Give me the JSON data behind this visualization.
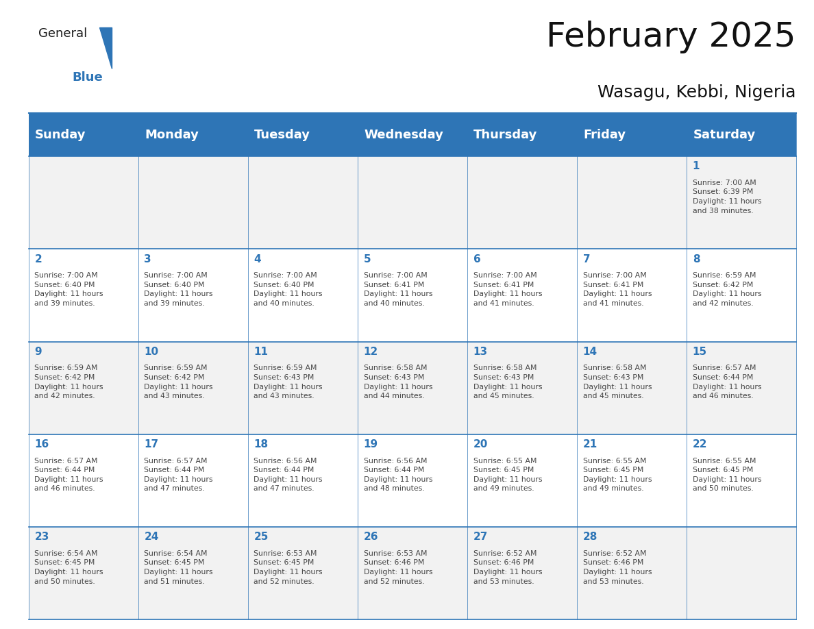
{
  "title": "February 2025",
  "subtitle": "Wasagu, Kebbi, Nigeria",
  "header_color": "#2E75B6",
  "header_text_color": "#FFFFFF",
  "bg_color": "#FFFFFF",
  "border_color": "#2E75B6",
  "day_names": [
    "Sunday",
    "Monday",
    "Tuesday",
    "Wednesday",
    "Thursday",
    "Friday",
    "Saturday"
  ],
  "weeks": [
    [
      {
        "day": "",
        "info": ""
      },
      {
        "day": "",
        "info": ""
      },
      {
        "day": "",
        "info": ""
      },
      {
        "day": "",
        "info": ""
      },
      {
        "day": "",
        "info": ""
      },
      {
        "day": "",
        "info": ""
      },
      {
        "day": "1",
        "info": "Sunrise: 7:00 AM\nSunset: 6:39 PM\nDaylight: 11 hours\nand 38 minutes."
      }
    ],
    [
      {
        "day": "2",
        "info": "Sunrise: 7:00 AM\nSunset: 6:40 PM\nDaylight: 11 hours\nand 39 minutes."
      },
      {
        "day": "3",
        "info": "Sunrise: 7:00 AM\nSunset: 6:40 PM\nDaylight: 11 hours\nand 39 minutes."
      },
      {
        "day": "4",
        "info": "Sunrise: 7:00 AM\nSunset: 6:40 PM\nDaylight: 11 hours\nand 40 minutes."
      },
      {
        "day": "5",
        "info": "Sunrise: 7:00 AM\nSunset: 6:41 PM\nDaylight: 11 hours\nand 40 minutes."
      },
      {
        "day": "6",
        "info": "Sunrise: 7:00 AM\nSunset: 6:41 PM\nDaylight: 11 hours\nand 41 minutes."
      },
      {
        "day": "7",
        "info": "Sunrise: 7:00 AM\nSunset: 6:41 PM\nDaylight: 11 hours\nand 41 minutes."
      },
      {
        "day": "8",
        "info": "Sunrise: 6:59 AM\nSunset: 6:42 PM\nDaylight: 11 hours\nand 42 minutes."
      }
    ],
    [
      {
        "day": "9",
        "info": "Sunrise: 6:59 AM\nSunset: 6:42 PM\nDaylight: 11 hours\nand 42 minutes."
      },
      {
        "day": "10",
        "info": "Sunrise: 6:59 AM\nSunset: 6:42 PM\nDaylight: 11 hours\nand 43 minutes."
      },
      {
        "day": "11",
        "info": "Sunrise: 6:59 AM\nSunset: 6:43 PM\nDaylight: 11 hours\nand 43 minutes."
      },
      {
        "day": "12",
        "info": "Sunrise: 6:58 AM\nSunset: 6:43 PM\nDaylight: 11 hours\nand 44 minutes."
      },
      {
        "day": "13",
        "info": "Sunrise: 6:58 AM\nSunset: 6:43 PM\nDaylight: 11 hours\nand 45 minutes."
      },
      {
        "day": "14",
        "info": "Sunrise: 6:58 AM\nSunset: 6:43 PM\nDaylight: 11 hours\nand 45 minutes."
      },
      {
        "day": "15",
        "info": "Sunrise: 6:57 AM\nSunset: 6:44 PM\nDaylight: 11 hours\nand 46 minutes."
      }
    ],
    [
      {
        "day": "16",
        "info": "Sunrise: 6:57 AM\nSunset: 6:44 PM\nDaylight: 11 hours\nand 46 minutes."
      },
      {
        "day": "17",
        "info": "Sunrise: 6:57 AM\nSunset: 6:44 PM\nDaylight: 11 hours\nand 47 minutes."
      },
      {
        "day": "18",
        "info": "Sunrise: 6:56 AM\nSunset: 6:44 PM\nDaylight: 11 hours\nand 47 minutes."
      },
      {
        "day": "19",
        "info": "Sunrise: 6:56 AM\nSunset: 6:44 PM\nDaylight: 11 hours\nand 48 minutes."
      },
      {
        "day": "20",
        "info": "Sunrise: 6:55 AM\nSunset: 6:45 PM\nDaylight: 11 hours\nand 49 minutes."
      },
      {
        "day": "21",
        "info": "Sunrise: 6:55 AM\nSunset: 6:45 PM\nDaylight: 11 hours\nand 49 minutes."
      },
      {
        "day": "22",
        "info": "Sunrise: 6:55 AM\nSunset: 6:45 PM\nDaylight: 11 hours\nand 50 minutes."
      }
    ],
    [
      {
        "day": "23",
        "info": "Sunrise: 6:54 AM\nSunset: 6:45 PM\nDaylight: 11 hours\nand 50 minutes."
      },
      {
        "day": "24",
        "info": "Sunrise: 6:54 AM\nSunset: 6:45 PM\nDaylight: 11 hours\nand 51 minutes."
      },
      {
        "day": "25",
        "info": "Sunrise: 6:53 AM\nSunset: 6:45 PM\nDaylight: 11 hours\nand 52 minutes."
      },
      {
        "day": "26",
        "info": "Sunrise: 6:53 AM\nSunset: 6:46 PM\nDaylight: 11 hours\nand 52 minutes."
      },
      {
        "day": "27",
        "info": "Sunrise: 6:52 AM\nSunset: 6:46 PM\nDaylight: 11 hours\nand 53 minutes."
      },
      {
        "day": "28",
        "info": "Sunrise: 6:52 AM\nSunset: 6:46 PM\nDaylight: 11 hours\nand 53 minutes."
      },
      {
        "day": "",
        "info": ""
      }
    ]
  ],
  "logo_general_color": "#1A1A1A",
  "logo_blue_color": "#2E75B6",
  "logo_triangle_color": "#2E75B6",
  "title_fontsize": 36,
  "subtitle_fontsize": 18,
  "day_number_color": "#2E75B6",
  "cell_text_color": "#444444",
  "header_fontsize": 13,
  "day_number_fontsize": 11,
  "cell_info_fontsize": 7.8
}
